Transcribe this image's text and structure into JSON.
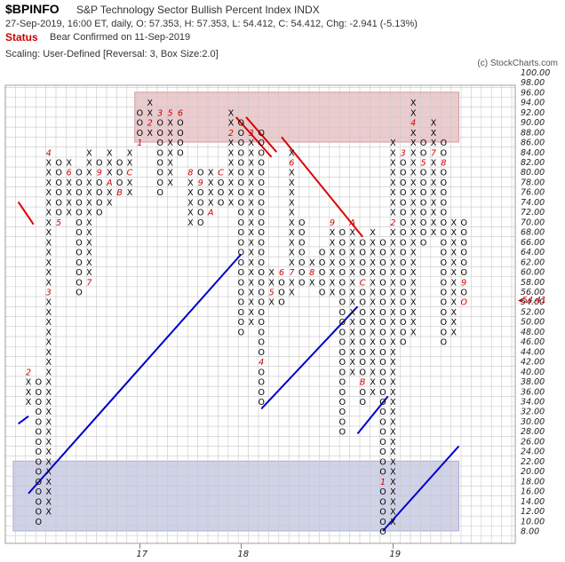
{
  "header": {
    "symbol": "$BPINFO",
    "name": "S&P Technology Sector Bullish Percent Index  INDX",
    "quote": "27-Sep-2019, 16:00 ET, daily, O: 57.353, H: 57.353, L: 54.412, C: 54.412, Chg: -2.941 (-5.13%)",
    "status_label": "Status",
    "status_text": "Bear Confirmed on 11-Sep-2019",
    "scaling": "Scaling: User-Defined [Reversal: 3, Box Size:2.0]",
    "credit": "(c) StockCharts.com"
  },
  "colors": {
    "x_mark": "#000000",
    "o_mark": "#000000",
    "month_mark": "#cc0000",
    "bull_line": "#0000cc",
    "bear_line": "#dd0000",
    "overbought_zone": "#e8c4c6",
    "oversold_zone": "#c8cbe4",
    "last_price": "#cc0000"
  },
  "chart_data": {
    "type": "point-and-figure",
    "box_size": 2.0,
    "reversal": 3,
    "ylim": [
      8,
      100
    ],
    "y_ticks": [
      "100.00",
      "98.00",
      "96.00",
      "94.00",
      "92.00",
      "90.00",
      "88.00",
      "86.00",
      "84.00",
      "82.00",
      "80.00",
      "78.00",
      "76.00",
      "74.00",
      "72.00",
      "70.00",
      "68.00",
      "66.00",
      "64.00",
      "62.00",
      "60.00",
      "58.00",
      "56.00",
      "54.00",
      "52.00",
      "50.00",
      "48.00",
      "46.00",
      "44.00",
      "42.00",
      "40.00",
      "38.00",
      "36.00",
      "34.00",
      "32.00",
      "30.00",
      "28.00",
      "26.00",
      "24.00",
      "22.00",
      "20.00",
      "18.00",
      "16.00",
      "14.00",
      "12.00",
      "10.00",
      "8.00"
    ],
    "x_labels": [
      {
        "text": "17",
        "col": 11
      },
      {
        "text": "18",
        "col": 21
      },
      {
        "text": "19",
        "col": 36
      }
    ],
    "last_value": "54.41",
    "zones": [
      {
        "name": "overbought",
        "from": 86,
        "to": 96
      },
      {
        "name": "oversold",
        "from": 8,
        "to": 22
      }
    ],
    "columns": [
      {
        "type": "X",
        "low": 34,
        "high": 40,
        "marks": {
          "40": "2"
        }
      },
      {
        "type": "O",
        "low": 10,
        "high": 38
      },
      {
        "type": "X",
        "low": 12,
        "high": 84,
        "marks": {
          "56": "3",
          "84": "4"
        }
      },
      {
        "type": "O",
        "low": 70,
        "high": 82,
        "marks": {
          "70": "5"
        }
      },
      {
        "type": "X",
        "low": 72,
        "high": 82,
        "marks": {
          "80": "6"
        }
      },
      {
        "type": "O",
        "low": 56,
        "high": 80
      },
      {
        "type": "X",
        "low": 58,
        "high": 84,
        "marks": {
          "58": "7"
        }
      },
      {
        "type": "O",
        "low": 72,
        "high": 82,
        "marks": {
          "80": "9"
        }
      },
      {
        "type": "X",
        "low": 74,
        "high": 84,
        "marks": {
          "78": "A"
        }
      },
      {
        "type": "O",
        "low": 76,
        "high": 82,
        "marks": {
          "76": "B"
        }
      },
      {
        "type": "X",
        "low": 76,
        "high": 84,
        "marks": {
          "80": "C"
        }
      },
      {
        "type": "O",
        "low": 86,
        "high": 92,
        "marks": {
          "86": "1"
        }
      },
      {
        "type": "X",
        "low": 88,
        "high": 94,
        "marks": {
          "90": "2"
        }
      },
      {
        "type": "O",
        "low": 76,
        "high": 92,
        "marks": {
          "92": "3"
        }
      },
      {
        "type": "X",
        "low": 78,
        "high": 92,
        "marks": {
          "92": "5"
        }
      },
      {
        "type": "O",
        "low": 84,
        "high": 92,
        "marks": {
          "92": "6"
        }
      },
      {
        "type": "X",
        "low": 70,
        "high": 80,
        "marks": {
          "80": "8"
        }
      },
      {
        "type": "O",
        "low": 70,
        "high": 80,
        "marks": {
          "78": "9"
        }
      },
      {
        "type": "X",
        "low": 72,
        "high": 80,
        "marks": {
          "72": "A"
        }
      },
      {
        "type": "O",
        "low": 74,
        "high": 80,
        "marks": {
          "80": "C"
        }
      },
      {
        "type": "X",
        "low": 74,
        "high": 92,
        "marks": {
          "72": "1",
          "88": "2"
        }
      },
      {
        "type": "O",
        "low": 48,
        "high": 90
      },
      {
        "type": "X",
        "low": 50,
        "high": 88,
        "marks": {
          "88": "3"
        }
      },
      {
        "type": "O",
        "low": 34,
        "high": 88,
        "marks": {
          "42": "4"
        }
      },
      {
        "type": "X",
        "low": 54,
        "high": 60,
        "marks": {
          "56": "5"
        }
      },
      {
        "type": "O",
        "low": 54,
        "high": 60,
        "marks": {
          "60": "6"
        }
      },
      {
        "type": "X",
        "low": 56,
        "high": 84,
        "marks": {
          "60": "7",
          "82": "6"
        }
      },
      {
        "type": "O",
        "low": 58,
        "high": 70
      },
      {
        "type": "X",
        "low": 58,
        "high": 62,
        "marks": {
          "60": "8"
        }
      },
      {
        "type": "O",
        "low": 56,
        "high": 64
      },
      {
        "type": "X",
        "low": 56,
        "high": 70,
        "marks": {
          "70": "9"
        }
      },
      {
        "type": "O",
        "low": 28,
        "high": 68
      },
      {
        "type": "X",
        "low": 40,
        "high": 70,
        "marks": {
          "70": "A"
        }
      },
      {
        "type": "O",
        "low": 34,
        "high": 66,
        "marks": {
          "38": "B",
          "58": "C"
        }
      },
      {
        "type": "X",
        "low": 36,
        "high": 68
      },
      {
        "type": "O",
        "low": 8,
        "high": 66,
        "marks": {
          "18": "1"
        }
      },
      {
        "type": "X",
        "low": 10,
        "high": 86,
        "marks": {
          "70": "2"
        }
      },
      {
        "type": "O",
        "low": 46,
        "high": 84,
        "marks": {
          "84": "3"
        }
      },
      {
        "type": "X",
        "low": 48,
        "high": 94,
        "marks": {
          "90": "4"
        }
      },
      {
        "type": "O",
        "low": 66,
        "high": 86,
        "marks": {
          "82": "5"
        }
      },
      {
        "type": "X",
        "low": 68,
        "high": 90,
        "marks": {
          "84": "7"
        }
      },
      {
        "type": "O",
        "low": 46,
        "high": 86,
        "marks": {
          "82": "8"
        }
      },
      {
        "type": "X",
        "low": 48,
        "high": 70
      },
      {
        "type": "O",
        "low": 54,
        "high": 70,
        "marks": {
          "58": "9",
          "54": "O"
        }
      }
    ],
    "trend_lines": [
      {
        "kind": "bull",
        "from": {
          "col": -1,
          "y": 29.5
        },
        "to": {
          "col": 0,
          "y": 31
        }
      },
      {
        "kind": "bull",
        "from": {
          "col": 0,
          "y": 15.5
        },
        "to": {
          "col": 21,
          "y": 63.5
        }
      },
      {
        "kind": "bull",
        "from": {
          "col": 23,
          "y": 32.5
        },
        "to": {
          "col": 32.5,
          "y": 53
        }
      },
      {
        "kind": "bull",
        "from": {
          "col": 32.5,
          "y": 27.5
        },
        "to": {
          "col": 35.5,
          "y": 35
        }
      },
      {
        "kind": "bull",
        "from": {
          "col": 35,
          "y": 8
        },
        "to": {
          "col": 42.5,
          "y": 25
        }
      },
      {
        "kind": "bear",
        "from": {
          "col": -1,
          "y": 74
        },
        "to": {
          "col": 0.5,
          "y": 69.5
        }
      },
      {
        "kind": "bear",
        "from": {
          "col": 20.5,
          "y": 91
        },
        "to": {
          "col": 24,
          "y": 83
        }
      },
      {
        "kind": "bear",
        "from": {
          "col": 21.5,
          "y": 91
        },
        "to": {
          "col": 24.5,
          "y": 84
        }
      },
      {
        "kind": "bear",
        "from": {
          "col": 25,
          "y": 87
        },
        "to": {
          "col": 33,
          "y": 67
        }
      }
    ]
  }
}
